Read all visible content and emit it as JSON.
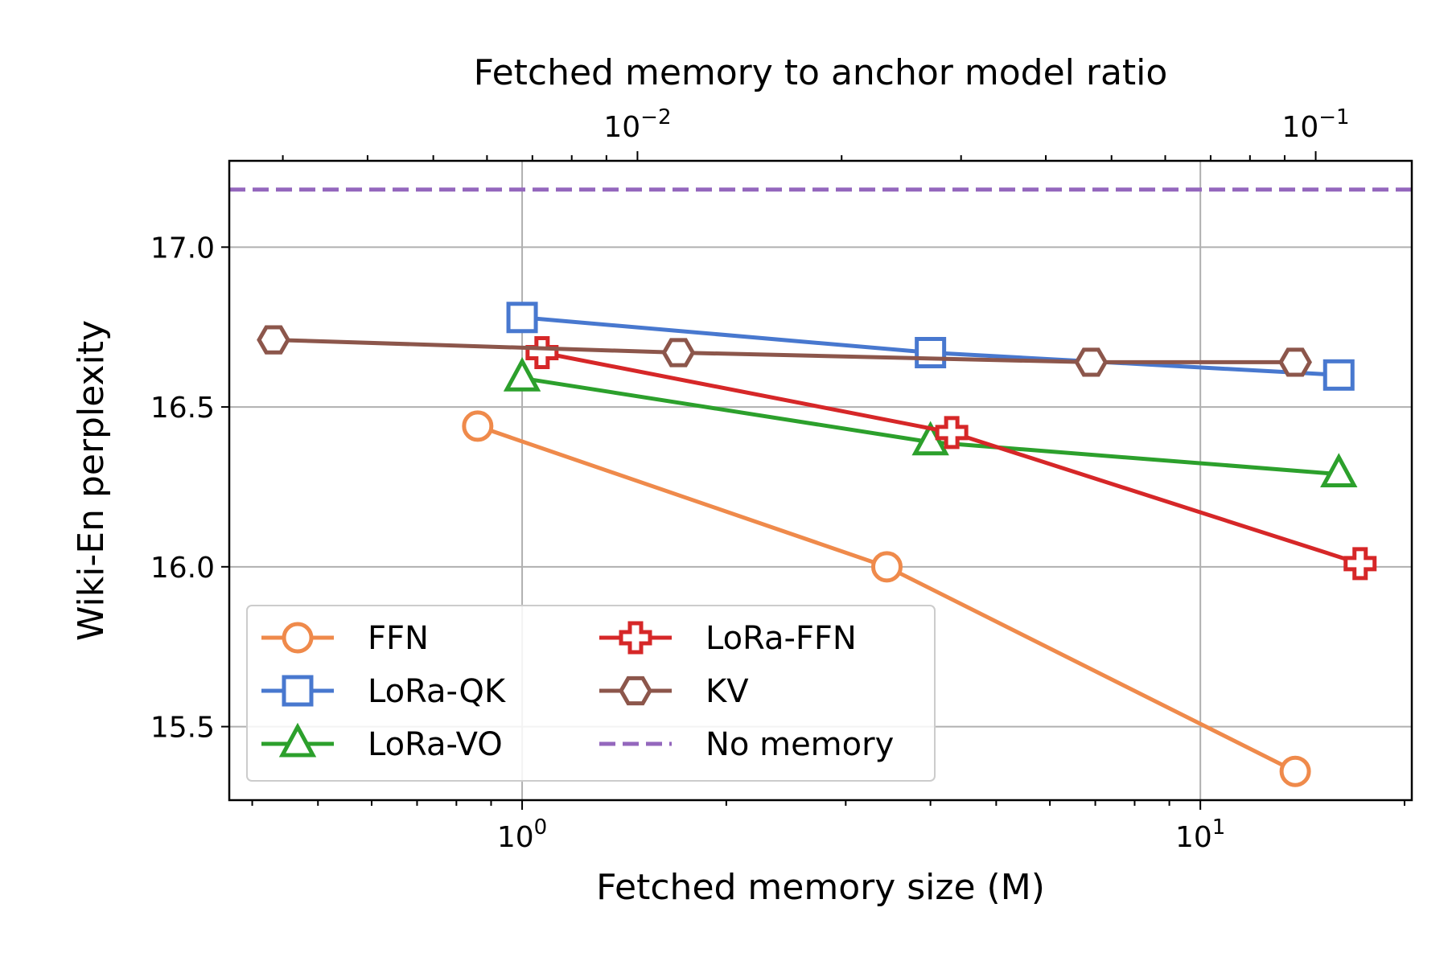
{
  "chart_data": {
    "type": "line",
    "xscale": "log",
    "xlabel": "Fetched memory size (M)",
    "ylabel": "Wiki-En perplexity",
    "top_xlabel": "Fetched memory to anchor model ratio",
    "xlim": [
      0.37,
      20.5
    ],
    "ylim": [
      15.27,
      17.27
    ],
    "top_axis_scale": 0.00676,
    "x_ticks_major": [
      {
        "value": 1,
        "base": "10",
        "exp": "0"
      },
      {
        "value": 10,
        "base": "10",
        "exp": "1"
      }
    ],
    "x_ticks_minor": [
      0.4,
      0.5,
      0.6,
      0.7,
      0.8,
      0.9,
      2,
      3,
      4,
      5,
      6,
      7,
      8,
      9,
      20
    ],
    "top_ticks_major": [
      {
        "value": 0.01,
        "base": "10",
        "exp": "−2"
      },
      {
        "value": 0.1,
        "base": "10",
        "exp": "−1"
      }
    ],
    "top_ticks_minor": [
      0.003,
      0.004,
      0.005,
      0.006,
      0.007,
      0.008,
      0.009,
      0.02,
      0.03,
      0.04,
      0.05,
      0.06,
      0.07,
      0.08,
      0.09
    ],
    "y_ticks": [
      {
        "value": 15.5,
        "label": "15.5"
      },
      {
        "value": 16.0,
        "label": "16.0"
      },
      {
        "value": 16.5,
        "label": "16.5"
      },
      {
        "value": 17.0,
        "label": "17.0"
      }
    ],
    "grid": true,
    "legend_position": "lower-left",
    "series": [
      {
        "name": "FFN",
        "key": "ffn",
        "color": "#ef8a4b",
        "marker": "circle",
        "x": [
          0.86,
          3.45,
          13.8
        ],
        "y": [
          16.44,
          16.0,
          15.36
        ]
      },
      {
        "name": "LoRa-QK",
        "key": "lora-qk",
        "color": "#4878cf",
        "marker": "square",
        "x": [
          1.0,
          4.0,
          16.0
        ],
        "y": [
          16.78,
          16.67,
          16.6
        ]
      },
      {
        "name": "LoRa-VO",
        "key": "lora-vo",
        "color": "#2ca02c",
        "marker": "triangle",
        "x": [
          1.0,
          4.0,
          16.0
        ],
        "y": [
          16.59,
          16.39,
          16.29
        ]
      },
      {
        "name": "LoRa-FFN",
        "key": "lora-ffn",
        "color": "#d62728",
        "marker": "plus",
        "x": [
          1.07,
          4.3,
          17.2
        ],
        "y": [
          16.67,
          16.42,
          16.01
        ]
      },
      {
        "name": "KV",
        "key": "kv",
        "color": "#8c564b",
        "marker": "hexagon",
        "x": [
          0.43,
          1.7,
          6.9,
          13.8
        ],
        "y": [
          16.71,
          16.67,
          16.64,
          16.64
        ]
      }
    ],
    "reference_lines": [
      {
        "name": "No memory",
        "key": "no-memory",
        "color": "#9467bd",
        "style": "dashed",
        "y": 17.18
      }
    ]
  }
}
